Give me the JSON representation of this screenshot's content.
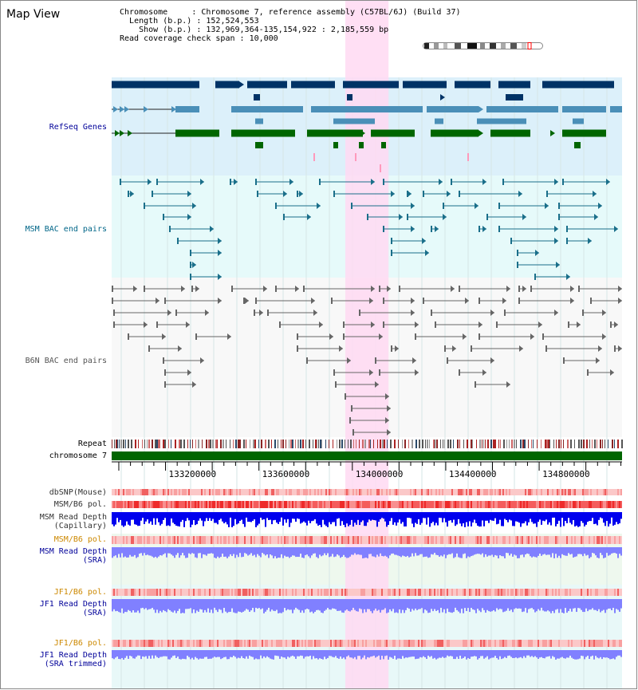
{
  "view": {
    "title": "Map View"
  },
  "info": {
    "chromosome_label": "Chromosome",
    "chromosome_value": "Chromosome 7, reference assembly (C57BL/6J) (Build 37)",
    "length_label": "Length (b.p.)",
    "length_value": "152,524,553",
    "show_label": "Show (b.p.)",
    "show_value": "132,969,364-135,154,922 : 2,185,559 bp",
    "coverage_label": "Read coverage check span",
    "coverage_value": "10,000"
  },
  "tracks": [
    {
      "label": "RefSeq Genes",
      "color": "#000099"
    },
    {
      "label": "MSM BAC end pairs",
      "color": "#006688"
    },
    {
      "label": "B6N BAC end pairs",
      "color": "#555555"
    },
    {
      "label": "Repeat",
      "color": "#000000"
    },
    {
      "label": "chromosome 7",
      "color": "#000000"
    },
    {
      "label": "dbSNP(Mouse)",
      "color": "#333333"
    },
    {
      "label": "MSM/B6 pol.",
      "color": "#333333"
    },
    {
      "label": "MSM Read Depth",
      "label2": "(Capillary)",
      "color": "#333333"
    },
    {
      "label": "MSM/B6 pol.",
      "color": "#cc8800"
    },
    {
      "label": "MSM Read Depth",
      "label2": "(SRA)",
      "color": "#000099"
    },
    {
      "label": "JF1/B6 pol.",
      "color": "#cc8800"
    },
    {
      "label": "JF1 Read Depth",
      "label2": "(SRA)",
      "color": "#000099"
    },
    {
      "label": "JF1/B6 pol.",
      "color": "#cc8800"
    },
    {
      "label": "JF1 Read Depth",
      "label2": "(SRA trimmed)",
      "color": "#000099"
    }
  ],
  "axis": {
    "range": [
      132969364,
      135154922
    ],
    "ticks": [
      {
        "value": 133200000,
        "label": "133200000"
      },
      {
        "value": 133600000,
        "label": "133600000"
      },
      {
        "value": 134000000,
        "label": "134000000"
      },
      {
        "value": 134400000,
        "label": "134400000"
      },
      {
        "value": 134800000,
        "label": "134800000"
      }
    ]
  },
  "highlight": {
    "start": 133970000,
    "end": 134155000,
    "color": "#ffd9f2"
  },
  "colors": {
    "gene_dark": "#003366",
    "gene_mid": "#4a8fb8",
    "gene_green": "#006600",
    "msm_bac": "#1a6f8a",
    "b6n_bac": "#666666",
    "chromosome_bar": "#006600",
    "depth_capillary": "#0000ee",
    "depth_sra": "#8080ff"
  }
}
